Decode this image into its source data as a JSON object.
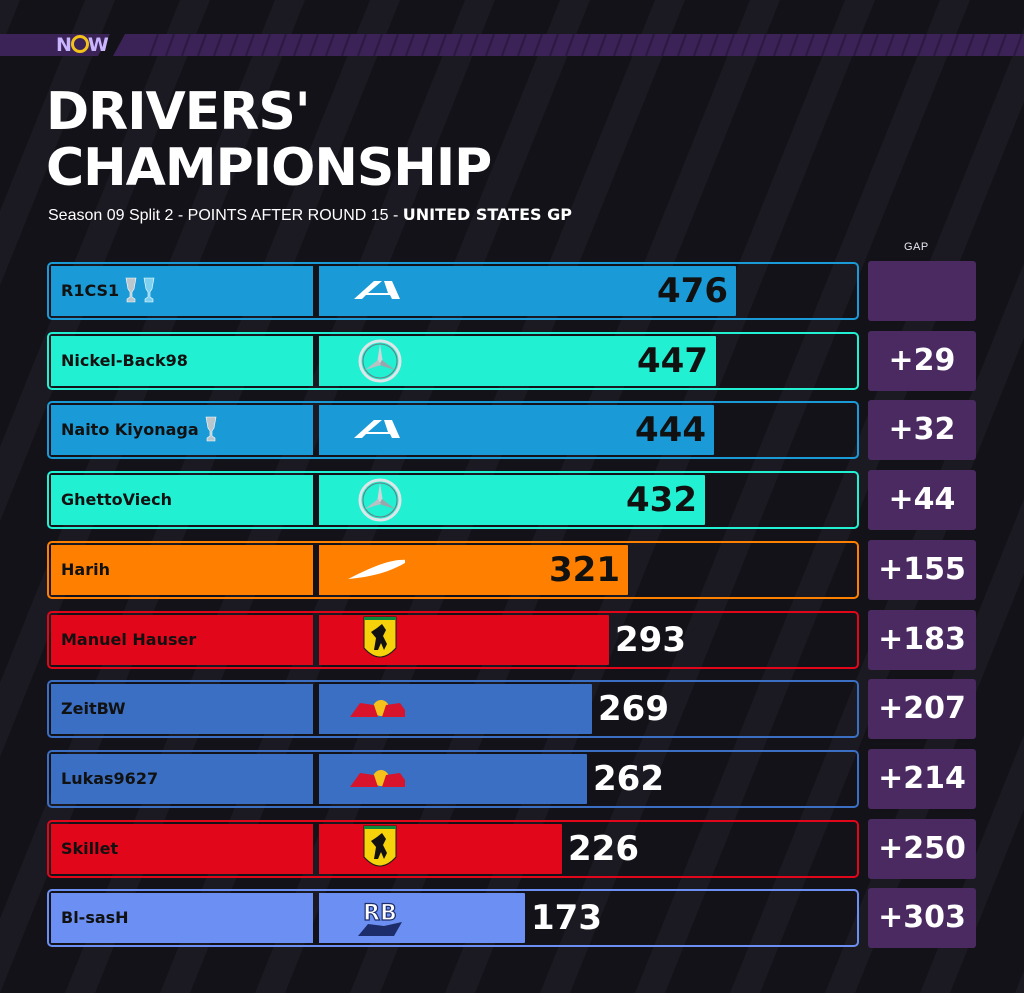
{
  "brand": {
    "logo_text_left": "N",
    "logo_text_right": "W"
  },
  "title_line1": "DRIVERS'",
  "title_line2": "CHAMPIONSHIP",
  "subtitle_plain": "Season 09 Split 2 - POINTS AFTER ROUND 15 -",
  "subtitle_bold": "UNITED STATES GP",
  "gap_header": "GAP",
  "colors": {
    "background": "#131218",
    "gap_box": "#4a2a61",
    "alpine": "#1a9ad6",
    "mercedes": "#22f0d2",
    "mclaren": "#ff8000",
    "ferrari": "#e2061b",
    "redbull": "#3a6fc4",
    "rb": "#6b8ff2",
    "accent_stripe": "#3b2257"
  },
  "chart_data": {
    "type": "bar",
    "orientation": "horizontal",
    "title": "DRIVERS' CHAMPIONSHIP",
    "subtitle": "Season 09 Split 2 - POINTS AFTER ROUND 15 - UNITED STATES GP",
    "xlim": [
      0,
      476
    ],
    "categories": [
      "R1CS1",
      "Nickel-Back98",
      "Naito Kiyonaga",
      "GhettoViech",
      "Harih",
      "Manuel Hauser",
      "ZeitBW",
      "Lukas9627",
      "Skillet",
      "Bl-sasH"
    ],
    "values": [
      476,
      447,
      444,
      432,
      321,
      293,
      269,
      262,
      226,
      173
    ],
    "rows": [
      {
        "name": "R1CS1",
        "team": "alpine",
        "team_icon": "alpine-icon",
        "points": 476,
        "gap": "",
        "trophies": 2,
        "trophy_colors": [
          "#b9c6cc",
          "#7ed0f0"
        ]
      },
      {
        "name": "Nickel-Back98",
        "team": "mercedes",
        "team_icon": "mercedes-icon",
        "points": 447,
        "gap": "+29",
        "trophies": 0,
        "trophy_colors": []
      },
      {
        "name": "Naito Kiyonaga",
        "team": "alpine",
        "team_icon": "alpine-icon",
        "points": 444,
        "gap": "+32",
        "trophies": 1,
        "trophy_colors": [
          "#b9c6cc"
        ]
      },
      {
        "name": "GhettoViech",
        "team": "mercedes",
        "team_icon": "mercedes-icon",
        "points": 432,
        "gap": "+44",
        "trophies": 0,
        "trophy_colors": []
      },
      {
        "name": "Harih",
        "team": "mclaren",
        "team_icon": "mclaren-icon",
        "points": 321,
        "gap": "+155",
        "trophies": 0,
        "trophy_colors": []
      },
      {
        "name": "Manuel Hauser",
        "team": "ferrari",
        "team_icon": "ferrari-icon",
        "points": 293,
        "gap": "+183",
        "trophies": 0,
        "trophy_colors": []
      },
      {
        "name": "ZeitBW",
        "team": "redbull",
        "team_icon": "redbull-icon",
        "points": 269,
        "gap": "+207",
        "trophies": 0,
        "trophy_colors": []
      },
      {
        "name": "Lukas9627",
        "team": "redbull",
        "team_icon": "redbull-icon",
        "points": 262,
        "gap": "+214",
        "trophies": 0,
        "trophy_colors": []
      },
      {
        "name": "Skillet",
        "team": "ferrari",
        "team_icon": "ferrari-icon",
        "points": 226,
        "gap": "+250",
        "trophies": 0,
        "trophy_colors": []
      },
      {
        "name": "Bl-sasH",
        "team": "rb",
        "team_icon": "rb-icon",
        "points": 173,
        "gap": "+303",
        "trophies": 0,
        "trophy_colors": []
      }
    ]
  }
}
